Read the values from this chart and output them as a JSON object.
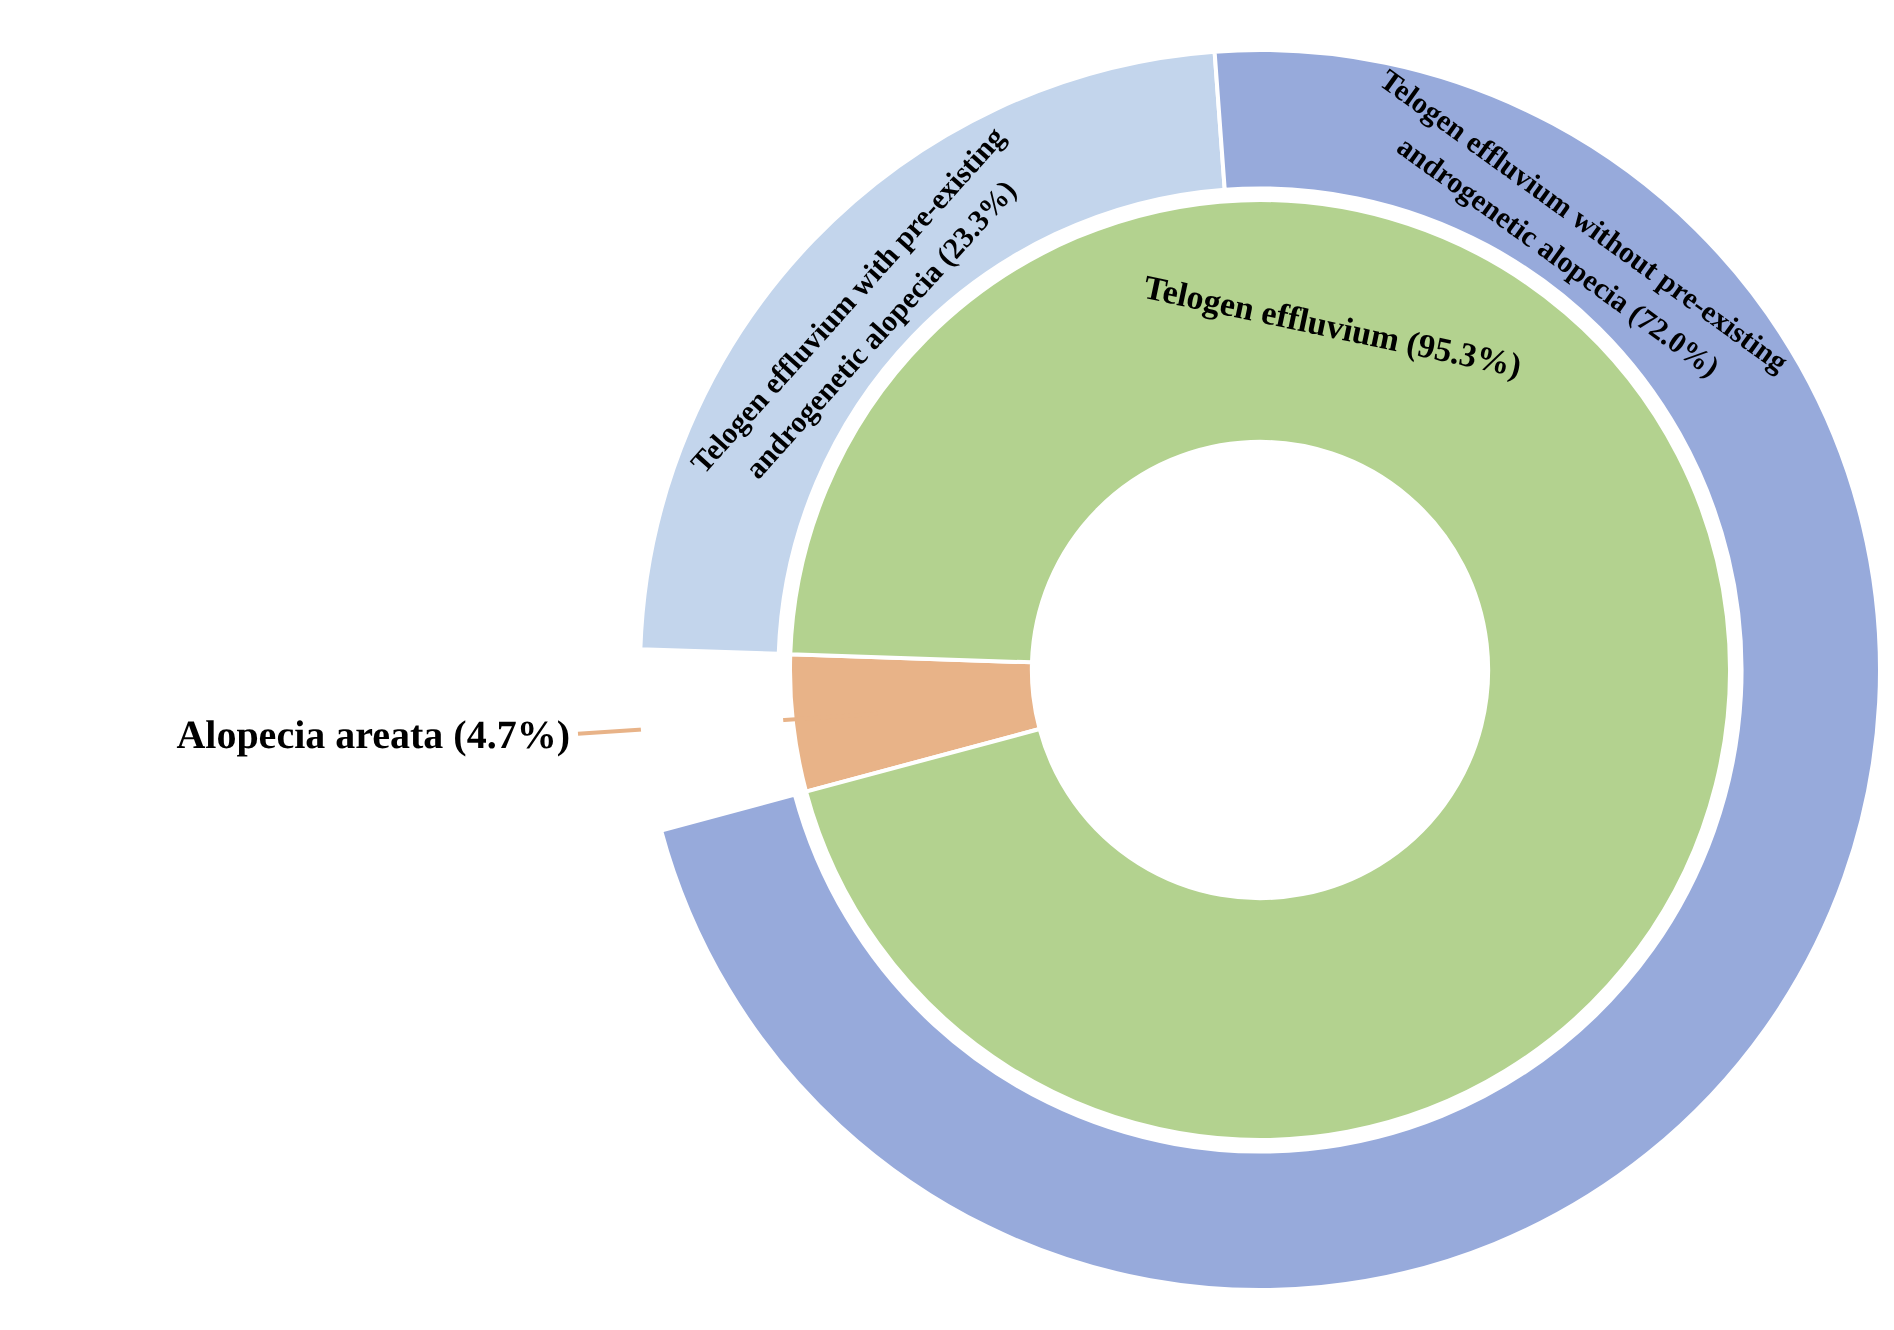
{
  "chart_data": [
    {
      "type": "donut",
      "categories": [
        "Alopecia areata",
        "Telogen effluvium"
      ],
      "values": [
        4.7,
        95.3
      ],
      "colors": [
        "#e8b388",
        "#b3d28f"
      ],
      "value_labels": [
        "(4.7%)",
        "(95.3%)"
      ],
      "legend": false
    },
    {
      "type": "donut",
      "categories": [
        null,
        "Telogen effluvium with pre-existing androgenetic alopecia",
        "Telogen effluvium without pre-existing androgenetic alopecia"
      ],
      "values": [
        4.7,
        23.3,
        72.0
      ],
      "colors": [
        "#ffffff",
        "#c3d5ec",
        "#97aadb"
      ],
      "value_labels": [
        null,
        "(23.3%)",
        "(72.0%)"
      ],
      "legend": false
    }
  ]
}
